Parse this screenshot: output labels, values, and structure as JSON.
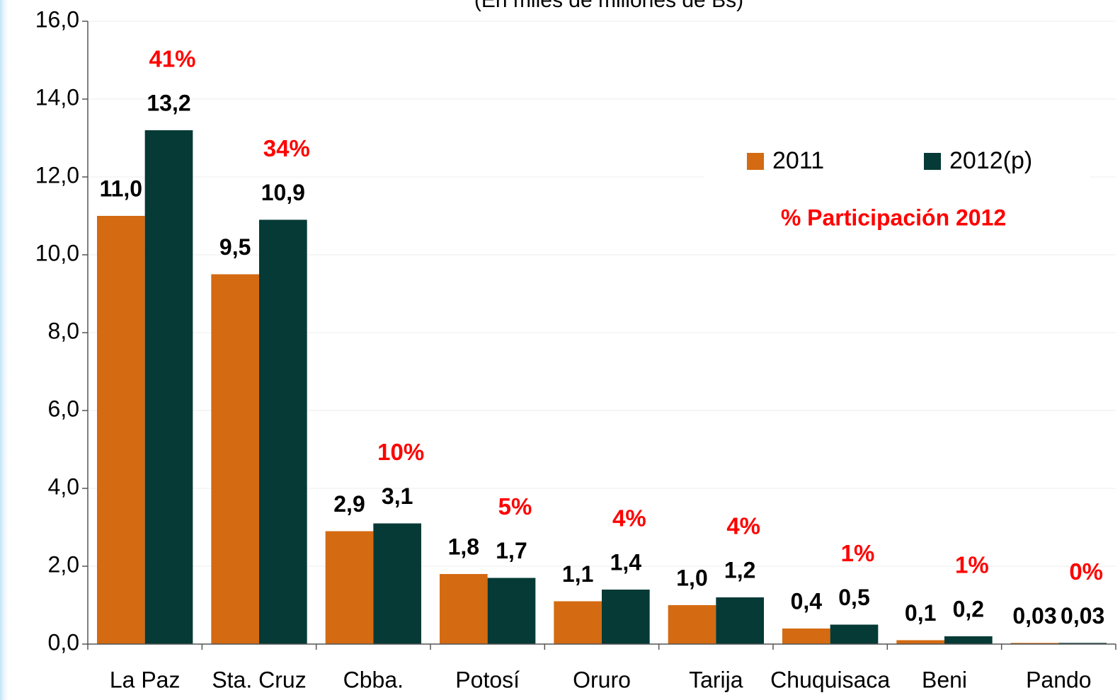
{
  "chart_data": {
    "type": "bar",
    "subtitle": "(En miles de millones de Bs)",
    "categories": [
      "La Paz",
      "Sta. Cruz",
      "Cbba.",
      "Potosí",
      "Oruro",
      "Tarija",
      "Chuquisaca",
      "Beni",
      "Pando"
    ],
    "series": [
      {
        "name": "2011",
        "color": "#d46a12",
        "values": [
          11.0,
          9.5,
          2.9,
          1.8,
          1.1,
          1.0,
          0.4,
          0.1,
          0.03
        ],
        "value_labels": [
          "11,0",
          "9,5",
          "2,9",
          "1,8",
          "1,1",
          "1,0",
          "0,4",
          "0,1",
          "0,03"
        ]
      },
      {
        "name": "2012(p)",
        "color": "#053a36",
        "values": [
          13.2,
          10.9,
          3.1,
          1.7,
          1.4,
          1.2,
          0.5,
          0.2,
          0.03
        ],
        "value_labels": [
          "13,2",
          "10,9",
          "3,1",
          "1,7",
          "1,4",
          "1,2",
          "0,5",
          "0,2",
          "0,03"
        ]
      }
    ],
    "participation": {
      "name": "% Participación 2012",
      "labels": [
        "41%",
        "34%",
        "10%",
        "5%",
        "4%",
        "4%",
        "1%",
        "1%",
        "0%"
      ]
    },
    "ylim": [
      0,
      16
    ],
    "yticks": [
      {
        "value": 0,
        "label": "0,0"
      },
      {
        "value": 2,
        "label": "2,0"
      },
      {
        "value": 4,
        "label": "4,0"
      },
      {
        "value": 6,
        "label": "6,0"
      },
      {
        "value": 8,
        "label": "8,0"
      },
      {
        "value": 10,
        "label": "10,0"
      },
      {
        "value": 12,
        "label": "12,0"
      },
      {
        "value": 14,
        "label": "14,0"
      },
      {
        "value": 16,
        "label": "16,0"
      }
    ],
    "grid": true
  }
}
